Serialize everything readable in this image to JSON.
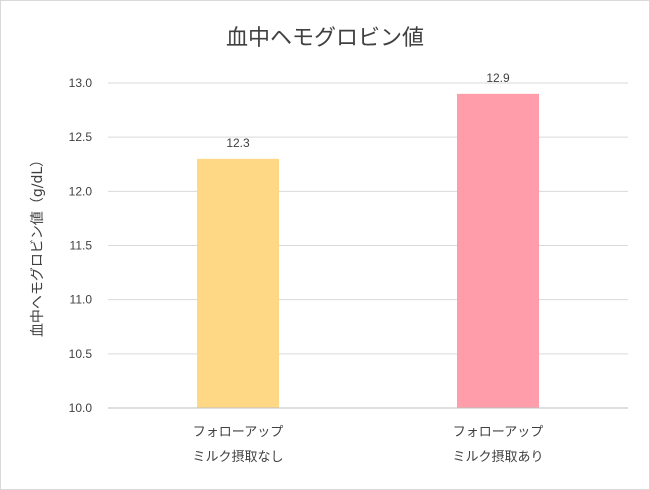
{
  "chart_data": {
    "type": "bar",
    "title": "血中ヘモグロビン値",
    "ylabel": "血中ヘモグロビン値（g/dL）",
    "xlabel": "",
    "categories": [
      [
        "フォローアップ",
        "ミルク摂取なし"
      ],
      [
        "フォローアップ",
        "ミルク摂取あり"
      ]
    ],
    "values": [
      12.3,
      12.9
    ],
    "data_labels": [
      "12.3",
      "12.9"
    ],
    "colors": [
      "#FFD886",
      "#FF9EAA"
    ],
    "ylim": [
      10.0,
      13.0
    ],
    "yticks": [
      "10.0",
      "10.5",
      "11.0",
      "11.5",
      "12.0",
      "12.5",
      "13.0"
    ],
    "grid": true,
    "legend": "none"
  }
}
